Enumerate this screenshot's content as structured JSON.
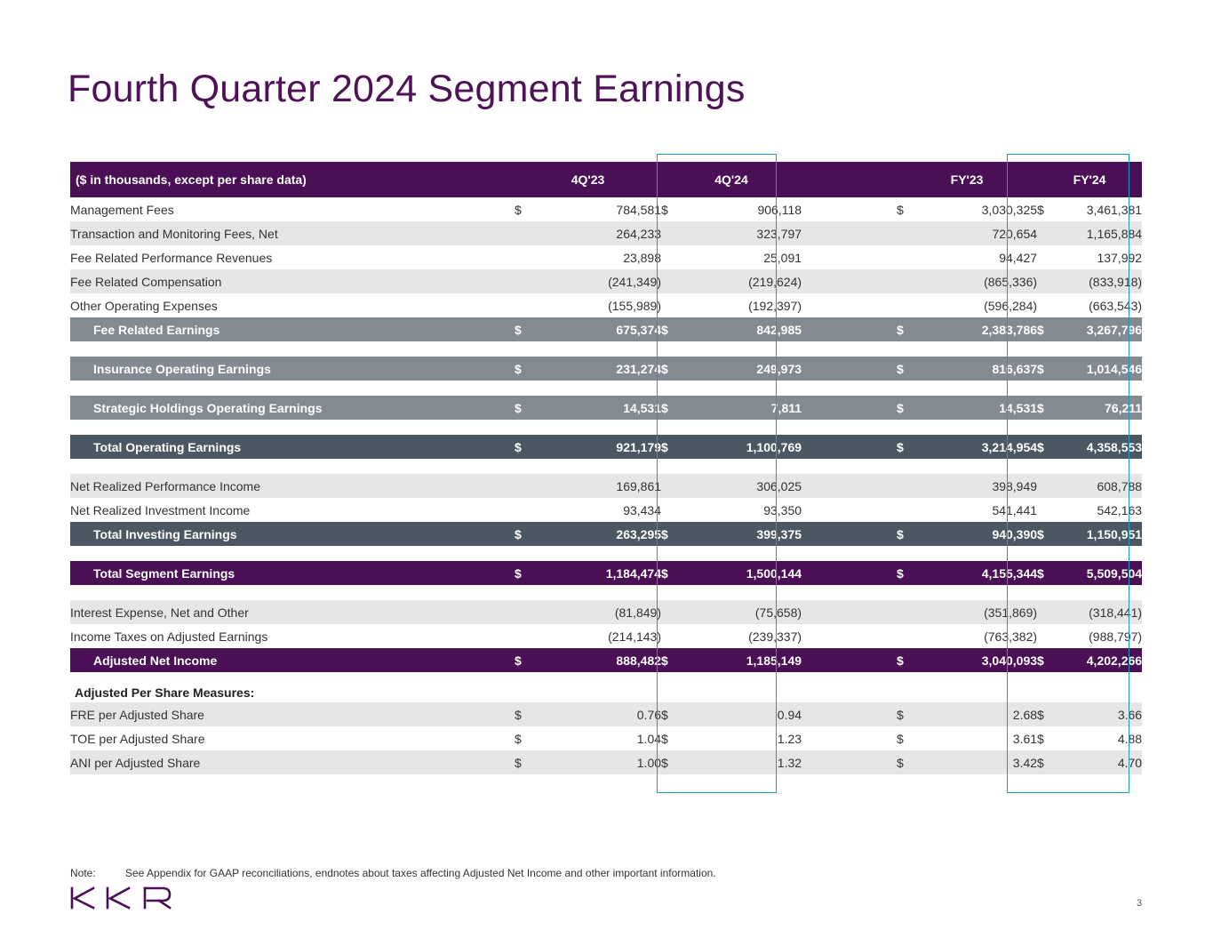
{
  "title": "Fourth Quarter 2024 Segment Earnings",
  "header": {
    "label": "($ in thousands, except per share data)",
    "columns": [
      "4Q'23",
      "4Q'24",
      "FY'23",
      "FY'24"
    ]
  },
  "rows": [
    {
      "label": "Management Fees",
      "style": "w",
      "dollar": true,
      "values": [
        "784,581",
        "906,118",
        "3,030,325",
        "3,461,381"
      ]
    },
    {
      "label": "Transaction and Monitoring Fees, Net",
      "style": "g",
      "dollar": false,
      "values": [
        "264,233",
        "323,797",
        "720,654",
        "1,165,884"
      ]
    },
    {
      "label": "Fee Related Performance Revenues",
      "style": "w",
      "dollar": false,
      "values": [
        "23,898",
        "25,091",
        "94,427",
        "137,992"
      ]
    },
    {
      "label": "Fee Related Compensation",
      "style": "g",
      "dollar": false,
      "values": [
        "(241,349)",
        "(219,624)",
        "(865,336)",
        "(833,918)"
      ]
    },
    {
      "label": "Other Operating Expenses",
      "style": "w",
      "dollar": false,
      "values": [
        "(155,989)",
        "(192,397)",
        "(596,284)",
        "(663,543)"
      ]
    },
    {
      "label": "Fee Related Earnings",
      "style": "sg",
      "dollar": true,
      "values": [
        "675,374",
        "842,985",
        "2,383,786",
        "3,267,796"
      ]
    },
    {
      "style": "gap"
    },
    {
      "label": "Insurance Operating Earnings",
      "style": "sg",
      "dollar": true,
      "values": [
        "231,274",
        "249,973",
        "816,637",
        "1,014,546"
      ]
    },
    {
      "style": "gap"
    },
    {
      "label": "Strategic Holdings Operating Earnings",
      "style": "sg",
      "dollar": true,
      "values": [
        "14,531",
        "7,811",
        "14,531",
        "76,211"
      ]
    },
    {
      "style": "gap"
    },
    {
      "label": "Total Operating Earnings",
      "style": "sd",
      "dollar": true,
      "values": [
        "921,179",
        "1,100,769",
        "3,214,954",
        "4,358,553"
      ]
    },
    {
      "style": "gap"
    },
    {
      "label": "Net Realized Performance Income",
      "style": "g",
      "dollar": false,
      "values": [
        "169,861",
        "306,025",
        "398,949",
        "608,788"
      ]
    },
    {
      "label": "Net Realized Investment Income",
      "style": "w",
      "dollar": false,
      "values": [
        "93,434",
        "93,350",
        "541,441",
        "542,163"
      ]
    },
    {
      "label": "Total Investing Earnings",
      "style": "sd",
      "dollar": true,
      "values": [
        "263,295",
        "399,375",
        "940,390",
        "1,150,951"
      ]
    },
    {
      "style": "gap"
    },
    {
      "label": "Total Segment Earnings",
      "style": "sp",
      "dollar": true,
      "values": [
        "1,184,474",
        "1,500,144",
        "4,155,344",
        "5,509,504"
      ]
    },
    {
      "style": "gap"
    },
    {
      "label": "Interest Expense, Net and Other",
      "style": "g",
      "dollar": false,
      "values": [
        "(81,849)",
        "(75,658)",
        "(351,869)",
        "(318,441)"
      ]
    },
    {
      "label": "Income Taxes on Adjusted Earnings",
      "style": "w",
      "dollar": false,
      "values": [
        "(214,143)",
        "(239,337)",
        "(763,382)",
        "(988,797)"
      ]
    },
    {
      "label": "Adjusted Net Income",
      "style": "sp",
      "dollar": true,
      "values": [
        "888,482",
        "1,185,149",
        "3,040,093",
        "4,202,266"
      ]
    },
    {
      "label": "Adjusted Per Share Measures:",
      "style": "psm"
    },
    {
      "label": "FRE per Adjusted Share",
      "style": "g",
      "dollar": true,
      "values": [
        "0.76",
        "0.94",
        "2.68",
        "3.66"
      ]
    },
    {
      "label": "TOE per Adjusted Share",
      "style": "w",
      "dollar": true,
      "values": [
        "1.04",
        "1.23",
        "3.61",
        "4.88"
      ]
    },
    {
      "label": "ANI per Adjusted Share",
      "style": "g",
      "dollar": true,
      "values": [
        "1.00",
        "1.32",
        "3.42",
        "4.70"
      ]
    }
  ],
  "dollar_sign": "$",
  "highlighted_columns": [
    "4Q'24",
    "FY'24"
  ],
  "colors": {
    "title": "#4f1158",
    "header_bg": "#4a0f55",
    "highlight_border": "#1a9cc4",
    "subtotal_grey": "#838a92",
    "subtotal_dark": "#4b5863"
  },
  "note": {
    "label": "Note:",
    "text": "See Appendix for GAAP reconciliations, endnotes about taxes affecting Adjusted Net Income and other important information."
  },
  "logo": {
    "text": "KKR"
  },
  "page_number": "3"
}
